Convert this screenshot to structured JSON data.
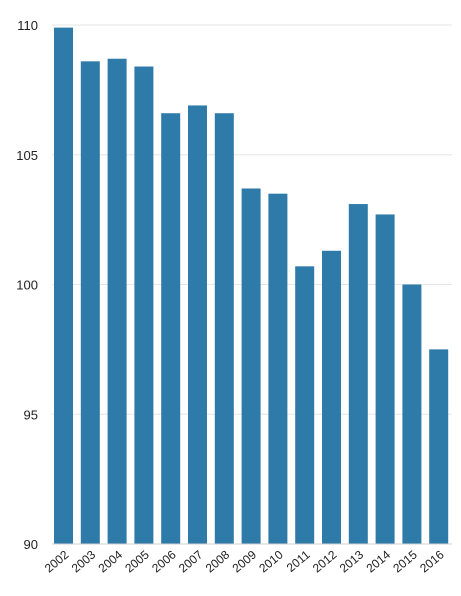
{
  "chart_data": {
    "type": "bar",
    "title": "",
    "xlabel": "",
    "ylabel": "",
    "categories": [
      "2002",
      "2003",
      "2004",
      "2005",
      "2006",
      "2007",
      "2008",
      "2009",
      "2010",
      "2011",
      "2012",
      "2013",
      "2014",
      "2015",
      "2016"
    ],
    "values": [
      109.9,
      108.6,
      108.7,
      108.4,
      106.6,
      106.9,
      106.6,
      103.7,
      103.5,
      100.7,
      101.3,
      103.1,
      102.7,
      100.0,
      97.5
    ],
    "ylim": [
      90,
      110
    ],
    "yticks": [
      90,
      95,
      100,
      105,
      110
    ],
    "grid": true,
    "legend": "none",
    "bar_color": "#2e7aa8",
    "x_tick_rotation": "diagonal"
  }
}
